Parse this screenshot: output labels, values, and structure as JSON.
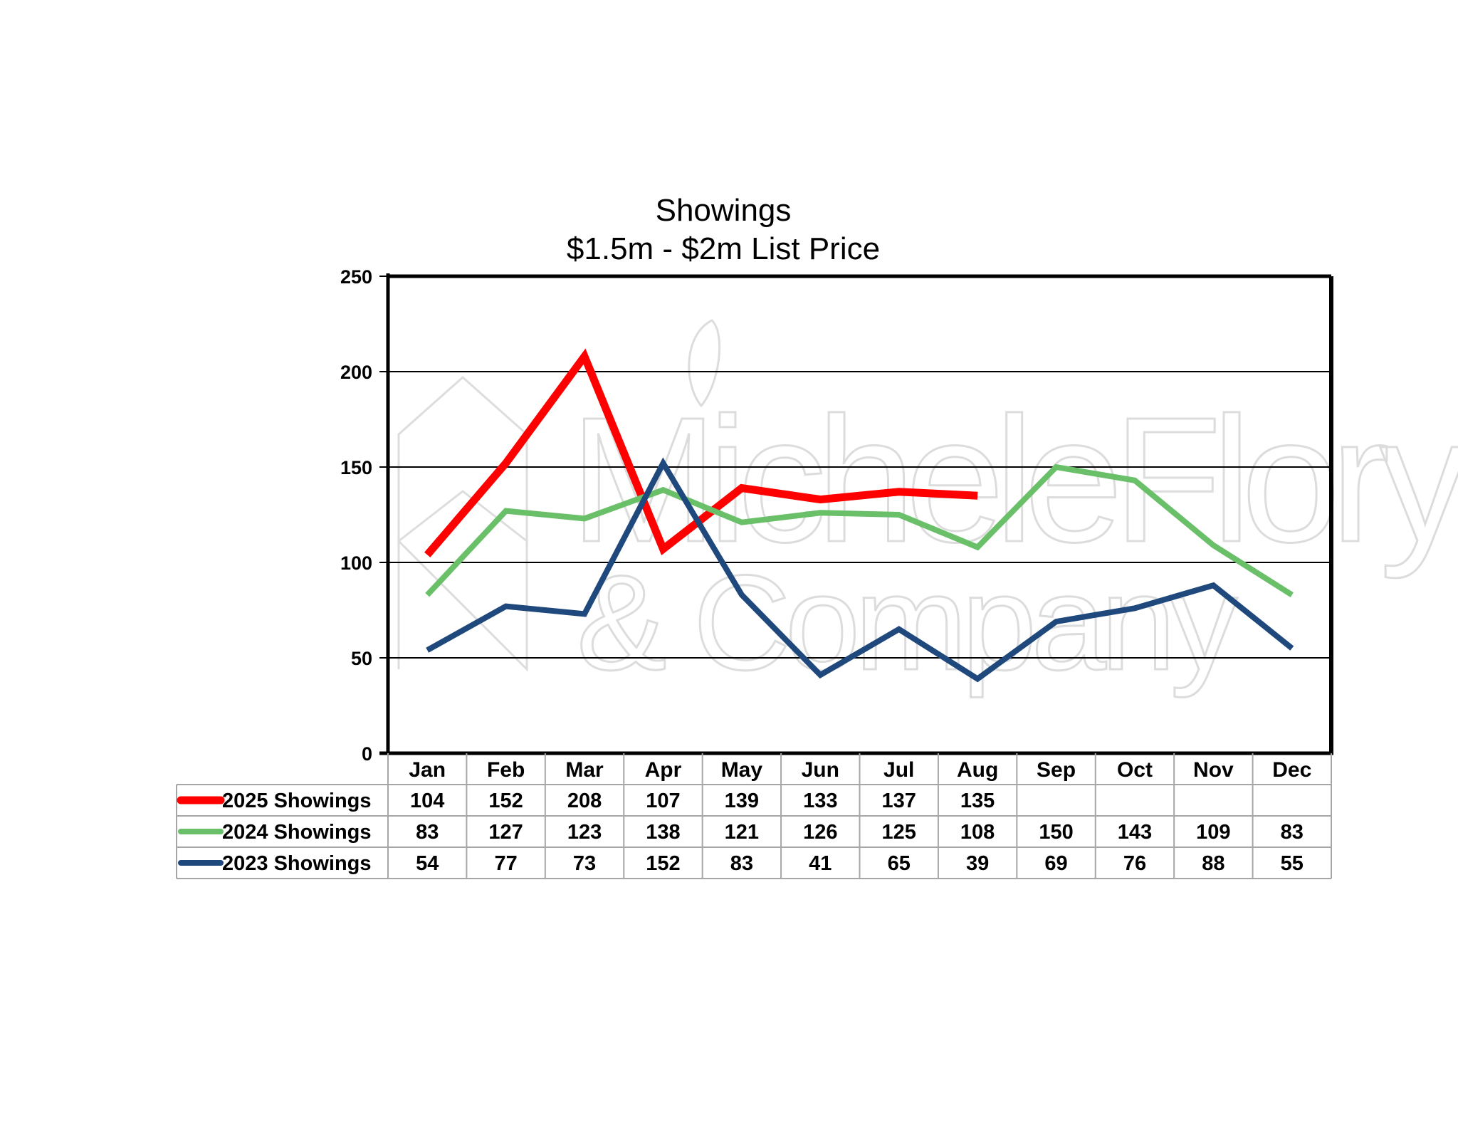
{
  "chart_data": {
    "type": "line",
    "title": "Showings",
    "subtitle": "$1.5m - $2m List Price",
    "categories": [
      "Jan",
      "Feb",
      "Mar",
      "Apr",
      "May",
      "Jun",
      "Jul",
      "Aug",
      "Sep",
      "Oct",
      "Nov",
      "Dec"
    ],
    "ylim": [
      0,
      250
    ],
    "yticks": [
      0,
      50,
      100,
      150,
      200,
      250
    ],
    "grid": true,
    "legend": "data-table-below",
    "series": [
      {
        "name": "2025 Showings",
        "color": "#ff0000",
        "values": [
          104,
          152,
          208,
          107,
          139,
          133,
          137,
          135,
          null,
          null,
          null,
          null
        ]
      },
      {
        "name": "2024 Showings",
        "color": "#6abf69",
        "values": [
          83,
          127,
          123,
          138,
          121,
          126,
          125,
          108,
          150,
          143,
          109,
          83
        ]
      },
      {
        "name": "2023 Showings",
        "color": "#1f497d",
        "values": [
          54,
          77,
          73,
          152,
          83,
          41,
          65,
          39,
          69,
          76,
          88,
          55
        ]
      }
    ],
    "watermark": {
      "line1": "MicheleFlory",
      "line2": "& Company"
    }
  }
}
